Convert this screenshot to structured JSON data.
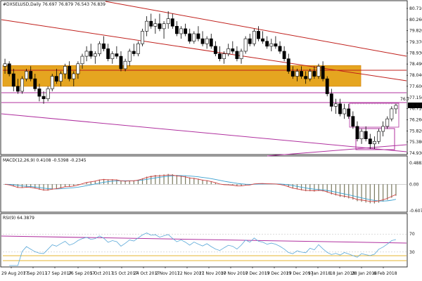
{
  "chart_data": {
    "type": "candlestick",
    "main": {
      "title": "#DXSELUSD,Daily  76.697 76.879 76.543 76.839",
      "y_ticks": [
        80.71,
        80.26,
        79.82,
        79.37,
        78.93,
        78.49,
        78.04,
        77.6,
        77.15,
        76.71,
        76.26,
        75.82,
        75.38,
        74.93
      ],
      "ylim": [
        74.93,
        80.71
      ],
      "current_price": "76.839",
      "marker_price": "76.7",
      "candles": [
        [
          78.4,
          78.7,
          78.1,
          78.5
        ],
        [
          78.5,
          78.6,
          78.0,
          78.1
        ],
        [
          78.1,
          78.3,
          77.4,
          77.6
        ],
        [
          77.6,
          77.9,
          77.3,
          77.4
        ],
        [
          77.4,
          78.0,
          77.3,
          77.9
        ],
        [
          77.9,
          78.3,
          77.8,
          78.2
        ],
        [
          78.2,
          78.4,
          77.8,
          77.9
        ],
        [
          77.9,
          78.1,
          77.4,
          77.5
        ],
        [
          77.5,
          77.7,
          77.0,
          77.2
        ],
        [
          77.2,
          77.4,
          76.9,
          77.1
        ],
        [
          77.1,
          77.6,
          77.0,
          77.5
        ],
        [
          77.5,
          78.1,
          77.4,
          78.0
        ],
        [
          78.0,
          78.3,
          77.7,
          77.8
        ],
        [
          77.8,
          78.2,
          77.6,
          78.1
        ],
        [
          78.1,
          78.5,
          77.9,
          78.4
        ],
        [
          78.4,
          78.6,
          77.8,
          77.9
        ],
        [
          77.9,
          78.2,
          77.6,
          78.1
        ],
        [
          78.1,
          78.6,
          77.9,
          78.5
        ],
        [
          78.5,
          78.9,
          78.3,
          78.8
        ],
        [
          78.8,
          79.2,
          78.6,
          79.0
        ],
        [
          79.0,
          79.3,
          78.7,
          78.8
        ],
        [
          78.8,
          79.0,
          78.5,
          78.9
        ],
        [
          78.9,
          79.4,
          78.8,
          79.3
        ],
        [
          79.3,
          79.6,
          79.0,
          79.1
        ],
        [
          79.1,
          79.3,
          78.6,
          78.7
        ],
        [
          78.7,
          79.0,
          78.5,
          78.9
        ],
        [
          78.9,
          79.2,
          78.7,
          78.8
        ],
        [
          78.8,
          79.0,
          78.2,
          78.3
        ],
        [
          78.3,
          78.7,
          78.2,
          78.6
        ],
        [
          78.6,
          79.1,
          78.4,
          79.0
        ],
        [
          79.0,
          79.3,
          78.8,
          78.9
        ],
        [
          78.9,
          79.4,
          78.8,
          79.3
        ],
        [
          79.3,
          79.9,
          79.2,
          79.8
        ],
        [
          79.8,
          80.4,
          79.6,
          80.2
        ],
        [
          80.2,
          80.5,
          79.9,
          80.0
        ],
        [
          80.0,
          80.3,
          79.7,
          80.1
        ],
        [
          80.1,
          80.5,
          79.8,
          79.9
        ],
        [
          79.9,
          80.2,
          79.5,
          80.1
        ],
        [
          80.1,
          80.6,
          79.9,
          80.3
        ],
        [
          80.3,
          80.5,
          79.9,
          80.0
        ],
        [
          80.0,
          80.2,
          79.6,
          79.7
        ],
        [
          79.7,
          80.0,
          79.5,
          79.9
        ],
        [
          79.9,
          80.1,
          79.6,
          79.7
        ],
        [
          79.7,
          79.9,
          79.3,
          79.4
        ],
        [
          79.4,
          79.8,
          79.3,
          79.7
        ],
        [
          79.7,
          80.0,
          79.4,
          79.5
        ],
        [
          79.5,
          79.8,
          79.2,
          79.3
        ],
        [
          79.3,
          79.6,
          79.1,
          79.5
        ],
        [
          79.5,
          79.7,
          79.1,
          79.2
        ],
        [
          79.2,
          79.4,
          78.8,
          78.9
        ],
        [
          78.9,
          79.2,
          78.6,
          78.7
        ],
        [
          78.7,
          79.0,
          78.5,
          78.9
        ],
        [
          78.9,
          79.3,
          78.8,
          79.1
        ],
        [
          79.1,
          79.4,
          78.9,
          79.0
        ],
        [
          79.0,
          79.2,
          78.6,
          78.7
        ],
        [
          78.7,
          79.1,
          78.5,
          79.0
        ],
        [
          79.0,
          79.6,
          78.9,
          79.5
        ],
        [
          79.5,
          79.7,
          79.2,
          79.3
        ],
        [
          79.3,
          79.9,
          79.2,
          79.8
        ],
        [
          79.8,
          80.0,
          79.4,
          79.5
        ],
        [
          79.5,
          79.8,
          79.3,
          79.4
        ],
        [
          79.4,
          79.6,
          79.1,
          79.2
        ],
        [
          79.2,
          79.5,
          79.0,
          79.3
        ],
        [
          79.3,
          79.6,
          79.1,
          79.2
        ],
        [
          79.2,
          79.4,
          78.9,
          79.0
        ],
        [
          79.0,
          79.2,
          78.6,
          78.7
        ],
        [
          78.7,
          78.9,
          78.1,
          78.2
        ],
        [
          78.2,
          78.4,
          77.9,
          78.0
        ],
        [
          78.0,
          78.3,
          77.8,
          78.2
        ],
        [
          78.2,
          78.4,
          77.9,
          78.0
        ],
        [
          78.0,
          78.2,
          77.7,
          77.9
        ],
        [
          77.9,
          78.3,
          77.8,
          78.2
        ],
        [
          78.2,
          78.4,
          77.9,
          78.0
        ],
        [
          78.0,
          78.5,
          77.9,
          78.4
        ],
        [
          78.4,
          78.6,
          77.8,
          77.9
        ],
        [
          77.9,
          78.0,
          77.2,
          77.3
        ],
        [
          77.3,
          77.5,
          76.6,
          76.8
        ],
        [
          76.8,
          77.1,
          76.5,
          76.9
        ],
        [
          76.9,
          77.1,
          76.4,
          76.5
        ],
        [
          76.5,
          76.9,
          76.3,
          76.7
        ],
        [
          76.7,
          76.9,
          76.3,
          76.4
        ],
        [
          76.4,
          76.6,
          75.9,
          76.0
        ],
        [
          76.0,
          76.2,
          75.4,
          75.5
        ],
        [
          75.5,
          75.9,
          75.3,
          75.8
        ],
        [
          75.8,
          76.0,
          75.4,
          75.5
        ],
        [
          75.5,
          75.7,
          75.1,
          75.3
        ],
        [
          75.3,
          75.6,
          75.1,
          75.4
        ],
        [
          75.4,
          75.9,
          75.3,
          75.8
        ],
        [
          75.8,
          76.2,
          75.6,
          76.0
        ],
        [
          76.0,
          76.4,
          75.9,
          76.3
        ],
        [
          76.3,
          76.8,
          76.2,
          76.7
        ],
        [
          76.7,
          76.9,
          76.5,
          76.84
        ]
      ]
    },
    "macd": {
      "title": "MACD(12,26,9) 0.4108 -0.5398 -0.2345",
      "y_ticks": [
        "0.4883",
        "0.00",
        "-0.6076"
      ],
      "ylim": [
        -0.6076,
        0.4883
      ]
    },
    "rsi": {
      "title": "RSI(9) 64.3879",
      "y_ticks": [
        "70",
        "30"
      ],
      "ylim": [
        0,
        100
      ]
    },
    "x_labels": [
      "29 Aug 2017",
      "7 Sep 2017",
      "17 Sep 2017",
      "26 Sep 2017",
      "5 Oct 2017",
      "15 Oct 2017",
      "24 Oct 2017",
      "2 Nov 2017",
      "12 Nov 2017",
      "21 Nov 2017",
      "30 Nov 2017",
      "10 Dec 2017",
      "19 Dec 2017",
      "29 Dec 2017",
      "9 Jan 2018",
      "18 Jan 2018",
      "28 Jan 2018",
      "6 Feb 2018"
    ],
    "colors": {
      "background": "#ffffff",
      "trend_red": "#c0201c",
      "support_magenta": "#b0309f",
      "zone_orange": "#e5a520",
      "zone_border": "#d88a12",
      "macd_red": "#d04040",
      "macd_blue": "#3aa0d0",
      "bullish_box": "#b0309f",
      "rsi_line": "#5aa8d8",
      "rsi_level_gold": "#e4b430",
      "hist_bar": "#7a7a60"
    }
  }
}
